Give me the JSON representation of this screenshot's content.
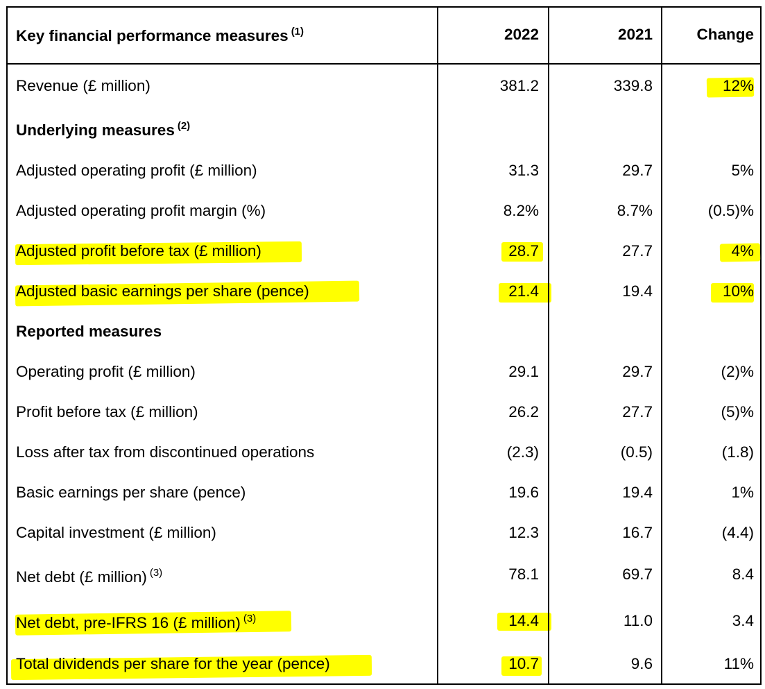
{
  "header": {
    "title": "Key financial performance measures",
    "title_note": "(1)",
    "col_2022": "2022",
    "col_2021": "2021",
    "col_change": "Change"
  },
  "highlight_color": "#ffff00",
  "sections": {
    "underlying": {
      "title": "Underlying measures",
      "note": "(2)"
    },
    "reported": {
      "title": "Reported measures"
    }
  },
  "rows": [
    {
      "label": "Revenue (£ million)",
      "v2022": "381.2",
      "v2021": "339.8",
      "change": "12%"
    },
    {
      "label": "Adjusted operating profit (£ million)",
      "v2022": "31.3",
      "v2021": "29.7",
      "change": "5%"
    },
    {
      "label": "Adjusted operating profit margin (%)",
      "v2022": "8.2%",
      "v2021": "8.7%",
      "change": "(0.5)%"
    },
    {
      "label": "Adjusted profit before tax (£ million)",
      "v2022": "28.7",
      "v2021": "27.7",
      "change": "4%"
    },
    {
      "label": "Adjusted basic earnings per share (pence)",
      "v2022": "21.4",
      "v2021": "19.4",
      "change": "10%"
    },
    {
      "label": "Operating profit (£ million)",
      "v2022": "29.1",
      "v2021": "29.7",
      "change": "(2)%"
    },
    {
      "label": "Profit before tax (£ million)",
      "v2022": "26.2",
      "v2021": "27.7",
      "change": "(5)%"
    },
    {
      "label": "Loss after tax from discontinued operations",
      "v2022": "(2.3)",
      "v2021": "(0.5)",
      "change": "(1.8)"
    },
    {
      "label": "Basic earnings per share (pence)",
      "v2022": "19.6",
      "v2021": "19.4",
      "change": "1%"
    },
    {
      "label": "Capital investment (£ million)",
      "v2022": "12.3",
      "v2021": "16.7",
      "change": "(4.4)"
    },
    {
      "label": "Net debt (£ million)",
      "note": "(3)",
      "v2022": "78.1",
      "v2021": "69.7",
      "change": "8.4"
    },
    {
      "label": "Net debt, pre-IFRS 16 (£ million)",
      "note": "(3)",
      "v2022": "14.4",
      "v2021": "11.0",
      "change": "3.4"
    },
    {
      "label": "Total dividends per share for the year (pence)",
      "v2022": "10.7",
      "v2021": "9.6",
      "change": "11%"
    }
  ]
}
